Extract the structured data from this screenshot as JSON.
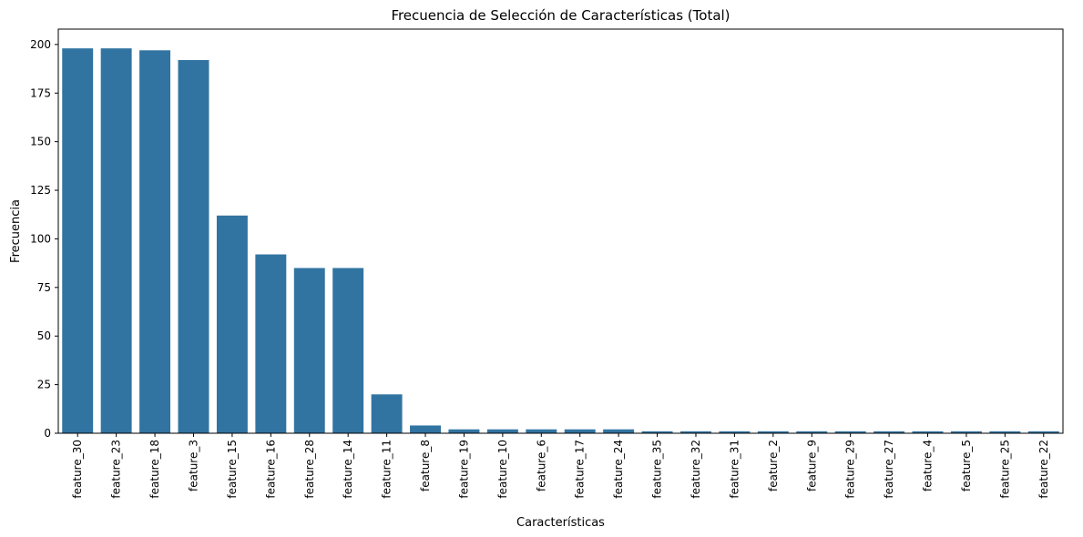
{
  "chart_data": {
    "type": "bar",
    "title": "Frecuencia de Selección de Características (Total)",
    "xlabel": "Características",
    "ylabel": "Frecuencia",
    "categories": [
      "feature_30",
      "feature_23",
      "feature_18",
      "feature_3",
      "feature_15",
      "feature_16",
      "feature_28",
      "feature_14",
      "feature_11",
      "feature_8",
      "feature_19",
      "feature_10",
      "feature_6",
      "feature_17",
      "feature_24",
      "feature_35",
      "feature_32",
      "feature_31",
      "feature_2",
      "feature_9",
      "feature_29",
      "feature_27",
      "feature_4",
      "feature_5",
      "feature_25",
      "feature_22"
    ],
    "values": [
      198,
      198,
      197,
      192,
      112,
      92,
      85,
      85,
      20,
      4,
      2,
      2,
      2,
      2,
      2,
      1,
      1,
      1,
      1,
      1,
      1,
      1,
      1,
      1,
      1,
      1
    ],
    "ylim": [
      0,
      207.9
    ],
    "yticks": [
      0,
      25,
      50,
      75,
      100,
      125,
      150,
      175,
      200
    ],
    "grid": false,
    "legend": "none",
    "bar_color": "#3274a1"
  }
}
